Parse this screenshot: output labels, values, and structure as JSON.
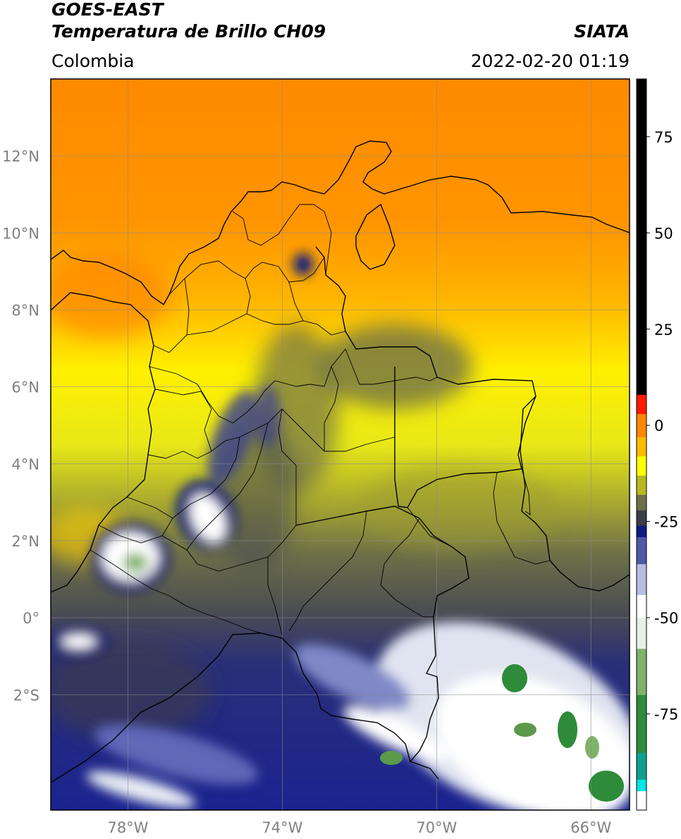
{
  "header": {
    "line1": "GOES-EAST",
    "line2": "Temperatura de Brillo CH09",
    "region": "Colombia",
    "organization": "SIATA",
    "timestamp": "2022-02-20 01:19"
  },
  "map": {
    "lon_range": [
      -80,
      -65
    ],
    "lat_range": [
      -5,
      14
    ],
    "lon_ticks": [
      {
        "value": -78,
        "label": "78°W"
      },
      {
        "value": -74,
        "label": "74°W"
      },
      {
        "value": -70,
        "label": "70°W"
      },
      {
        "value": -66,
        "label": "66°W"
      }
    ],
    "lat_ticks": [
      {
        "value": 12,
        "label": "12°N"
      },
      {
        "value": 10,
        "label": "10°N"
      },
      {
        "value": 8,
        "label": "8°N"
      },
      {
        "value": 6,
        "label": "6°N"
      },
      {
        "value": 4,
        "label": "4°N"
      },
      {
        "value": 2,
        "label": "2°N"
      },
      {
        "value": 0,
        "label": "0°"
      },
      {
        "value": -2,
        "label": "2°S"
      }
    ],
    "grid": true
  },
  "colorbar": {
    "range": [
      -100,
      90
    ],
    "ticks": [
      {
        "value": 75,
        "label": "75"
      },
      {
        "value": 50,
        "label": "50"
      },
      {
        "value": 25,
        "label": "25"
      },
      {
        "value": 0,
        "label": "0"
      },
      {
        "value": -25,
        "label": "-25"
      },
      {
        "value": -50,
        "label": "-50"
      },
      {
        "value": -75,
        "label": "-75"
      }
    ],
    "segments": [
      {
        "from": -100,
        "to": -95,
        "color": "#ffffff"
      },
      {
        "from": -95,
        "to": -92,
        "color": "#00e5e5"
      },
      {
        "from": -92,
        "to": -85,
        "color": "#10a090"
      },
      {
        "from": -85,
        "to": -70,
        "color": "#2e8b3a"
      },
      {
        "from": -70,
        "to": -58,
        "color": "#7fb36a"
      },
      {
        "from": -58,
        "to": -50,
        "color": "#e8efe8"
      },
      {
        "from": -50,
        "to": -44,
        "color": "#ffffff"
      },
      {
        "from": -44,
        "to": -36,
        "color": "#b8bce0"
      },
      {
        "from": -36,
        "to": -29,
        "color": "#5058a8"
      },
      {
        "from": -29,
        "to": -26,
        "color": "#101a80"
      },
      {
        "from": -26,
        "to": -22,
        "color": "#3c3e48"
      },
      {
        "from": -22,
        "to": -18,
        "color": "#6e7048"
      },
      {
        "from": -18,
        "to": -13,
        "color": "#b8b820"
      },
      {
        "from": -13,
        "to": -8,
        "color": "#ffff00"
      },
      {
        "from": -8,
        "to": -3,
        "color": "#ffbb00"
      },
      {
        "from": -3,
        "to": 3,
        "color": "#ff8800"
      },
      {
        "from": 3,
        "to": 8,
        "color": "#ff1a00"
      },
      {
        "from": 8,
        "to": 90,
        "color": "#000000"
      }
    ]
  }
}
